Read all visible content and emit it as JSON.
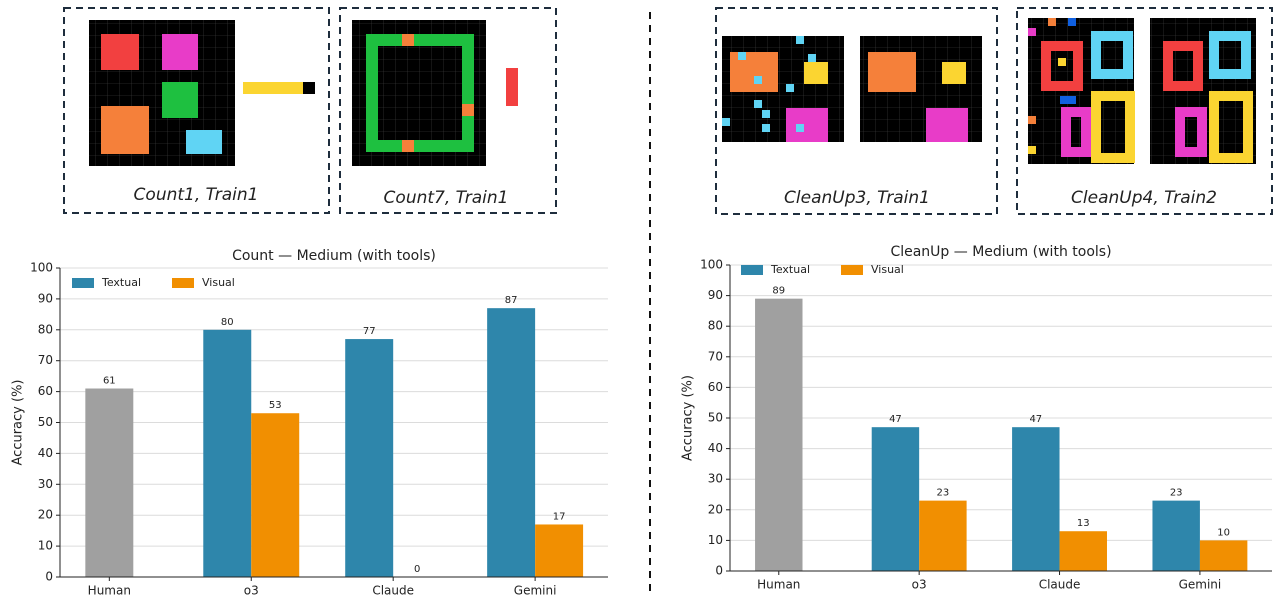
{
  "panels": [
    {
      "caption": "Count1, Train1"
    },
    {
      "caption": "Count7, Train1"
    },
    {
      "caption": "CleanUp3, Train1"
    },
    {
      "caption": "CleanUp4, Train2"
    }
  ],
  "chart_data": [
    {
      "type": "bar",
      "title": "Count — Medium (with tools)",
      "y_label": "Accuracy (%)",
      "categories": [
        "Human",
        "o3",
        "Claude",
        "Gemini"
      ],
      "baseline": {
        "values": [
          61,
          null,
          null,
          null
        ],
        "color": "#a0a0a0"
      },
      "series": [
        {
          "name": "Textual",
          "color": "#2e86ab",
          "values": [
            null,
            80,
            77,
            87
          ]
        },
        {
          "name": "Visual",
          "color": "#f18f01",
          "values": [
            null,
            53,
            0,
            17
          ]
        }
      ],
      "ylim": [
        0,
        100
      ],
      "yticks": [
        0,
        10,
        20,
        30,
        40,
        50,
        60,
        70,
        80,
        90,
        100
      ],
      "grid": true,
      "legend": "upper left"
    },
    {
      "type": "bar",
      "title": "CleanUp — Medium (with tools)",
      "y_label": "Accuracy (%)",
      "categories": [
        "Human",
        "o3",
        "Claude",
        "Gemini"
      ],
      "baseline": {
        "values": [
          89,
          null,
          null,
          null
        ],
        "color": "#a0a0a0"
      },
      "series": [
        {
          "name": "Textual",
          "color": "#2e86ab",
          "values": [
            null,
            47,
            47,
            23
          ]
        },
        {
          "name": "Visual",
          "color": "#f18f01",
          "values": [
            null,
            23,
            13,
            10
          ]
        }
      ],
      "ylim": [
        0,
        100
      ],
      "yticks": [
        0,
        10,
        20,
        30,
        40,
        50,
        60,
        70,
        80,
        90,
        100
      ],
      "grid": true,
      "legend": "upper left"
    }
  ]
}
